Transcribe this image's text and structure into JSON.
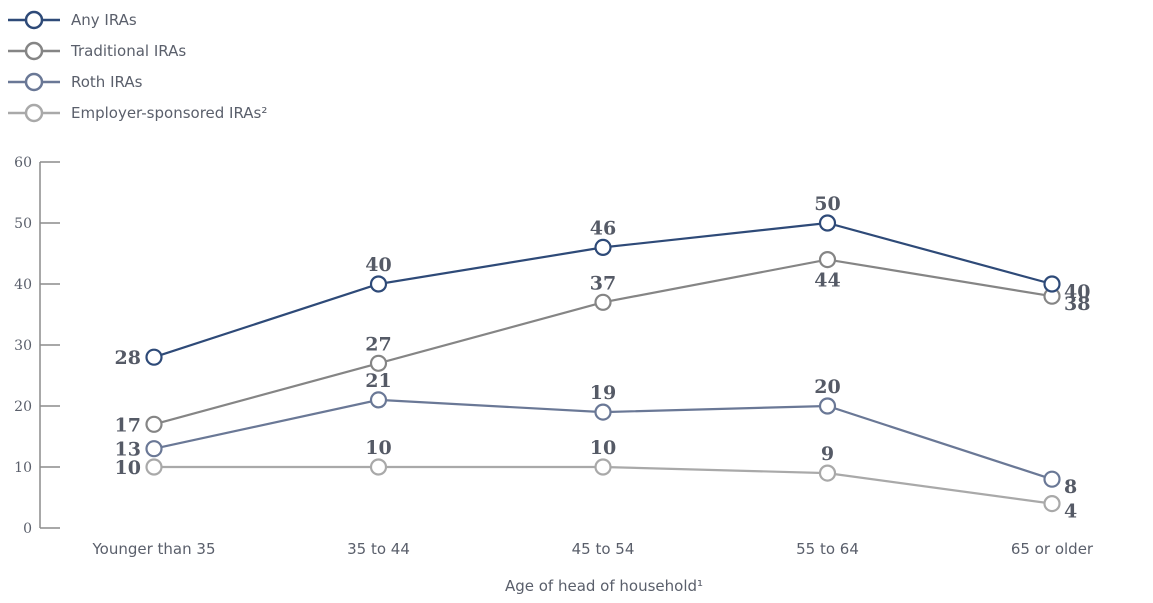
{
  "chart_data": {
    "type": "line",
    "title": "",
    "xlabel": "Age of head of household¹",
    "ylabel": "",
    "ylim": [
      0,
      60
    ],
    "yticks": [
      0,
      10,
      20,
      30,
      40,
      50,
      60
    ],
    "ytick_labels": [
      "0",
      "10",
      "20",
      "30",
      "40",
      "50",
      "60"
    ],
    "grid": false,
    "legend_position": "top-left",
    "categories": [
      "Younger than 35",
      "35 to 44",
      "45 to 54",
      "55 to 64",
      "65 or older"
    ],
    "series": [
      {
        "name": "Any IRAs",
        "color": "#2e4a78",
        "values": [
          28,
          40,
          46,
          50,
          40
        ]
      },
      {
        "name": "Traditional IRAs",
        "color": "#858585",
        "values": [
          17,
          27,
          37,
          44,
          38
        ]
      },
      {
        "name": "Roth IRAs",
        "color": "#6a7896",
        "values": [
          13,
          21,
          19,
          20,
          8
        ]
      },
      {
        "name": "Employer-sponsored IRAs²",
        "color": "#a9a9a9",
        "values": [
          10,
          10,
          10,
          9,
          4
        ]
      }
    ]
  }
}
